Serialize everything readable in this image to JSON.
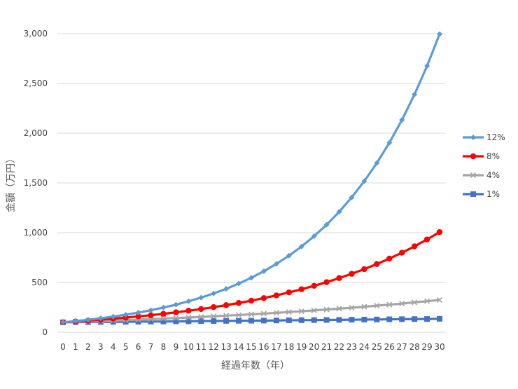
{
  "chart_data": {
    "type": "line",
    "title": "",
    "xlabel": "経過年数（年）",
    "ylabel": "金額（万円）",
    "x": [
      0,
      1,
      2,
      3,
      4,
      5,
      6,
      7,
      8,
      9,
      10,
      11,
      12,
      13,
      14,
      15,
      16,
      17,
      18,
      19,
      20,
      21,
      22,
      23,
      24,
      25,
      26,
      27,
      28,
      29,
      30
    ],
    "ylim": [
      0,
      3000
    ],
    "yticks": [
      0,
      500,
      1000,
      1500,
      2000,
      2500,
      3000
    ],
    "ytick_labels": [
      "0",
      "500",
      "1,000",
      "1,500",
      "2,000",
      "2,500",
      "3,000"
    ],
    "grid": "horizontal",
    "legend_position": "right",
    "series": [
      {
        "name": "12%",
        "color": "#5b9bd5",
        "marker": "diamond",
        "values": [
          100,
          112,
          125,
          140,
          157,
          176,
          197,
          221,
          248,
          277,
          311,
          348,
          390,
          436,
          489,
          547,
          613,
          687,
          769,
          861,
          965,
          1080,
          1210,
          1355,
          1518,
          1700,
          1904,
          2133,
          2388,
          2675,
          2996
        ]
      },
      {
        "name": "8%",
        "color": "#ff0000",
        "marker": "circle",
        "values": [
          100,
          108,
          117,
          126,
          136,
          147,
          159,
          171,
          185,
          200,
          216,
          233,
          252,
          272,
          294,
          317,
          343,
          370,
          400,
          432,
          466,
          503,
          544,
          587,
          634,
          685,
          740,
          799,
          863,
          932,
          1006
        ]
      },
      {
        "name": "4%",
        "color": "#a5a5a5",
        "marker": "x",
        "values": [
          100,
          104,
          108,
          112,
          117,
          122,
          127,
          132,
          137,
          142,
          148,
          154,
          160,
          167,
          173,
          180,
          187,
          195,
          203,
          211,
          219,
          228,
          237,
          246,
          256,
          267,
          277,
          288,
          300,
          312,
          324
        ]
      },
      {
        "name": "1%",
        "color": "#4472c4",
        "marker": "square",
        "values": [
          100,
          101,
          102,
          103,
          104,
          105,
          106,
          107,
          108,
          109,
          110,
          112,
          113,
          114,
          115,
          116,
          117,
          118,
          120,
          121,
          122,
          123,
          124,
          126,
          127,
          128,
          130,
          131,
          132,
          133,
          135
        ]
      }
    ]
  }
}
